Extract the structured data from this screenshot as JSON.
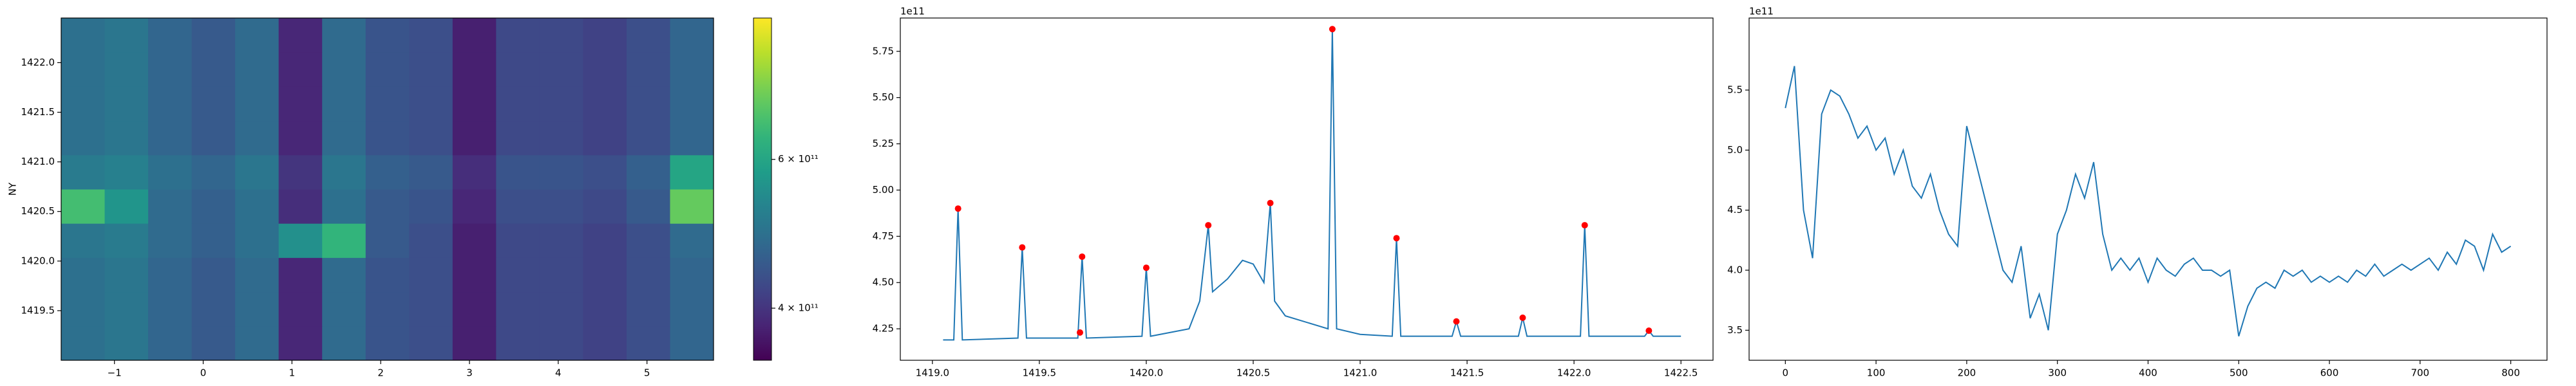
{
  "chart_data": [
    {
      "type": "heatmap",
      "y_label": "NY",
      "x": [
        -1.355,
        -0.865,
        -0.375,
        0.115,
        0.605,
        1.095,
        1.585,
        2.075,
        2.565,
        3.055,
        3.545,
        4.035,
        4.525,
        5.015,
        5.505
      ],
      "y": [
        1419.17,
        1419.52,
        1419.86,
        1420.21,
        1420.55,
        1420.9,
        1421.24,
        1421.59,
        1421.93,
        1422.28
      ],
      "z": [
        [
          500000000000.0,
          510000000000.0,
          480000000000.0,
          460000000000.0,
          490000000000.0,
          380000000000.0,
          490000000000.0,
          450000000000.0,
          440000000000.0,
          370000000000.0,
          430000000000.0,
          430000000000.0,
          420000000000.0,
          440000000000.0,
          480000000000.0
        ],
        [
          500000000000.0,
          510000000000.0,
          480000000000.0,
          460000000000.0,
          490000000000.0,
          380000000000.0,
          490000000000.0,
          450000000000.0,
          440000000000.0,
          370000000000.0,
          430000000000.0,
          430000000000.0,
          420000000000.0,
          440000000000.0,
          480000000000.0
        ],
        [
          500000000000.0,
          510000000000.0,
          480000000000.0,
          460000000000.0,
          490000000000.0,
          380000000000.0,
          490000000000.0,
          450000000000.0,
          440000000000.0,
          370000000000.0,
          430000000000.0,
          430000000000.0,
          420000000000.0,
          440000000000.0,
          480000000000.0
        ],
        [
          510000000000.0,
          520000000000.0,
          490000000000.0,
          470000000000.0,
          500000000000.0,
          560000000000.0,
          630000000000.0,
          460000000000.0,
          440000000000.0,
          370000000000.0,
          430000000000.0,
          430000000000.0,
          420000000000.0,
          440000000000.0,
          490000000000.0
        ],
        [
          650000000000.0,
          570000000000.0,
          490000000000.0,
          470000000000.0,
          500000000000.0,
          390000000000.0,
          500000000000.0,
          460000000000.0,
          450000000000.0,
          380000000000.0,
          440000000000.0,
          440000000000.0,
          430000000000.0,
          460000000000.0,
          680000000000.0
        ],
        [
          520000000000.0,
          530000000000.0,
          500000000000.0,
          480000000000.0,
          510000000000.0,
          400000000000.0,
          510000000000.0,
          470000000000.0,
          460000000000.0,
          390000000000.0,
          450000000000.0,
          450000000000.0,
          440000000000.0,
          470000000000.0,
          600000000000.0
        ],
        [
          500000000000.0,
          510000000000.0,
          480000000000.0,
          460000000000.0,
          490000000000.0,
          380000000000.0,
          490000000000.0,
          450000000000.0,
          440000000000.0,
          370000000000.0,
          430000000000.0,
          430000000000.0,
          420000000000.0,
          440000000000.0,
          480000000000.0
        ],
        [
          500000000000.0,
          510000000000.0,
          480000000000.0,
          460000000000.0,
          490000000000.0,
          380000000000.0,
          490000000000.0,
          450000000000.0,
          440000000000.0,
          370000000000.0,
          430000000000.0,
          430000000000.0,
          420000000000.0,
          440000000000.0,
          480000000000.0
        ],
        [
          500000000000.0,
          510000000000.0,
          480000000000.0,
          460000000000.0,
          490000000000.0,
          380000000000.0,
          490000000000.0,
          450000000000.0,
          440000000000.0,
          370000000000.0,
          430000000000.0,
          430000000000.0,
          420000000000.0,
          440000000000.0,
          480000000000.0
        ],
        [
          500000000000.0,
          510000000000.0,
          480000000000.0,
          460000000000.0,
          490000000000.0,
          380000000000.0,
          490000000000.0,
          450000000000.0,
          440000000000.0,
          370000000000.0,
          430000000000.0,
          430000000000.0,
          420000000000.0,
          440000000000.0,
          480000000000.0
        ]
      ],
      "xlim": [
        -1.6,
        5.75
      ],
      "ylim": [
        1419.0,
        1422.45
      ],
      "xticks": [
        {
          "value": -1,
          "label": "−1"
        },
        0,
        1,
        2,
        3,
        4,
        5
      ],
      "yticks": [
        1419.5,
        {
          "value": 1420,
          "label": "1420.0"
        },
        1420.5,
        {
          "value": 1421,
          "label": "1421.0"
        },
        1421.5,
        {
          "value": 1422,
          "label": "1422.0"
        }
      ],
      "clim": [
        330000000000.0,
        790000000000.0
      ],
      "cticks": [
        {
          "value": 400000000000.0,
          "label": "4 × 10¹¹"
        },
        {
          "value": 600000000000.0,
          "label": "6 × 10¹¹"
        }
      ],
      "colormap": "viridis"
    },
    {
      "type": "line",
      "offset_label": "1e11",
      "color": "#1f77b4",
      "x": [
        1419.05,
        1419.1,
        1419.12,
        1419.14,
        1419.4,
        1419.42,
        1419.44,
        1419.68,
        1419.7,
        1419.72,
        1419.98,
        1420.0,
        1420.02,
        1420.2,
        1420.25,
        1420.29,
        1420.31,
        1420.38,
        1420.45,
        1420.5,
        1420.55,
        1420.58,
        1420.6,
        1420.65,
        1420.85,
        1420.87,
        1420.89,
        1421.0,
        1421.15,
        1421.17,
        1421.19,
        1421.43,
        1421.45,
        1421.47,
        1421.74,
        1421.76,
        1421.78,
        1422.03,
        1422.05,
        1422.07,
        1422.33,
        1422.35,
        1422.37,
        1422.5
      ],
      "values": [
        4.19,
        4.19,
        4.9,
        4.19,
        4.2,
        4.69,
        4.2,
        4.2,
        4.64,
        4.2,
        4.21,
        4.58,
        4.21,
        4.25,
        4.4,
        4.81,
        4.45,
        4.52,
        4.62,
        4.6,
        4.5,
        4.93,
        4.4,
        4.32,
        4.25,
        5.87,
        4.25,
        4.22,
        4.21,
        4.74,
        4.21,
        4.21,
        4.29,
        4.21,
        4.21,
        4.31,
        4.21,
        4.21,
        4.81,
        4.21,
        4.21,
        4.24,
        4.21,
        4.21
      ],
      "markers": {
        "color": "red",
        "x": [
          1419.12,
          1419.42,
          1419.7,
          1419.69,
          1420.0,
          1420.29,
          1420.58,
          1420.87,
          1421.17,
          1421.45,
          1421.76,
          1422.05,
          1422.35
        ],
        "y": [
          4.9,
          4.69,
          4.64,
          4.23,
          4.58,
          4.81,
          4.93,
          5.87,
          4.74,
          4.29,
          4.31,
          4.81,
          4.24
        ]
      },
      "xlim": [
        1418.85,
        1422.65
      ],
      "ylim": [
        4.08,
        5.93
      ],
      "xticks": [
        {
          "value": 1419,
          "label": "1419.0"
        },
        1419.5,
        {
          "value": 1420,
          "label": "1420.0"
        },
        1420.5,
        {
          "value": 1421,
          "label": "1421.0"
        },
        1421.5,
        {
          "value": 1422,
          "label": "1422.0"
        },
        1422.5
      ],
      "yticks": [
        4.25,
        {
          "value": 4.5,
          "label": "4.50"
        },
        4.75,
        {
          "value": 5,
          "label": "5.00"
        },
        5.25,
        {
          "value": 5.5,
          "label": "5.50"
        },
        5.75
      ]
    },
    {
      "type": "line",
      "offset_label": "1e11",
      "color": "#1f77b4",
      "x": [
        0,
        10,
        20,
        30,
        40,
        50,
        60,
        70,
        80,
        90,
        100,
        110,
        120,
        130,
        140,
        150,
        160,
        170,
        180,
        190,
        200,
        210,
        220,
        230,
        240,
        250,
        260,
        270,
        280,
        290,
        300,
        310,
        320,
        330,
        340,
        350,
        360,
        370,
        380,
        390,
        400,
        410,
        420,
        430,
        440,
        450,
        460,
        470,
        480,
        490,
        500,
        510,
        520,
        530,
        540,
        550,
        560,
        570,
        580,
        590,
        600,
        610,
        620,
        630,
        640,
        650,
        660,
        670,
        680,
        690,
        700,
        710,
        720,
        730,
        740,
        750,
        760,
        770,
        780,
        790,
        800
      ],
      "values": [
        5.35,
        5.7,
        4.5,
        4.1,
        5.3,
        5.5,
        5.45,
        5.3,
        5.1,
        5.2,
        5.0,
        5.1,
        4.8,
        5.0,
        4.7,
        4.6,
        4.8,
        4.5,
        4.3,
        4.2,
        5.2,
        4.9,
        4.6,
        4.3,
        4.0,
        3.9,
        4.2,
        3.6,
        3.8,
        3.5,
        4.3,
        4.5,
        4.8,
        4.6,
        4.9,
        4.3,
        4.0,
        4.1,
        4.0,
        4.1,
        3.9,
        4.1,
        4.0,
        3.95,
        4.05,
        4.1,
        4.0,
        4.0,
        3.95,
        4.0,
        3.45,
        3.7,
        3.85,
        3.9,
        3.85,
        4.0,
        3.95,
        4.0,
        3.9,
        3.95,
        3.9,
        3.95,
        3.9,
        4.0,
        3.95,
        4.05,
        3.95,
        4.0,
        4.05,
        4.0,
        4.05,
        4.1,
        4.0,
        4.15,
        4.05,
        4.25,
        4.2,
        4.0,
        4.3,
        4.15,
        4.2
      ],
      "xlim": [
        -40,
        840
      ],
      "ylim": [
        3.25,
        6.1
      ],
      "xticks": [
        0,
        100,
        200,
        300,
        400,
        500,
        600,
        700,
        800
      ],
      "yticks": [
        3.5,
        {
          "value": 4,
          "label": "4.0"
        },
        4.5,
        {
          "value": 5,
          "label": "5.0"
        },
        5.5
      ]
    }
  ]
}
